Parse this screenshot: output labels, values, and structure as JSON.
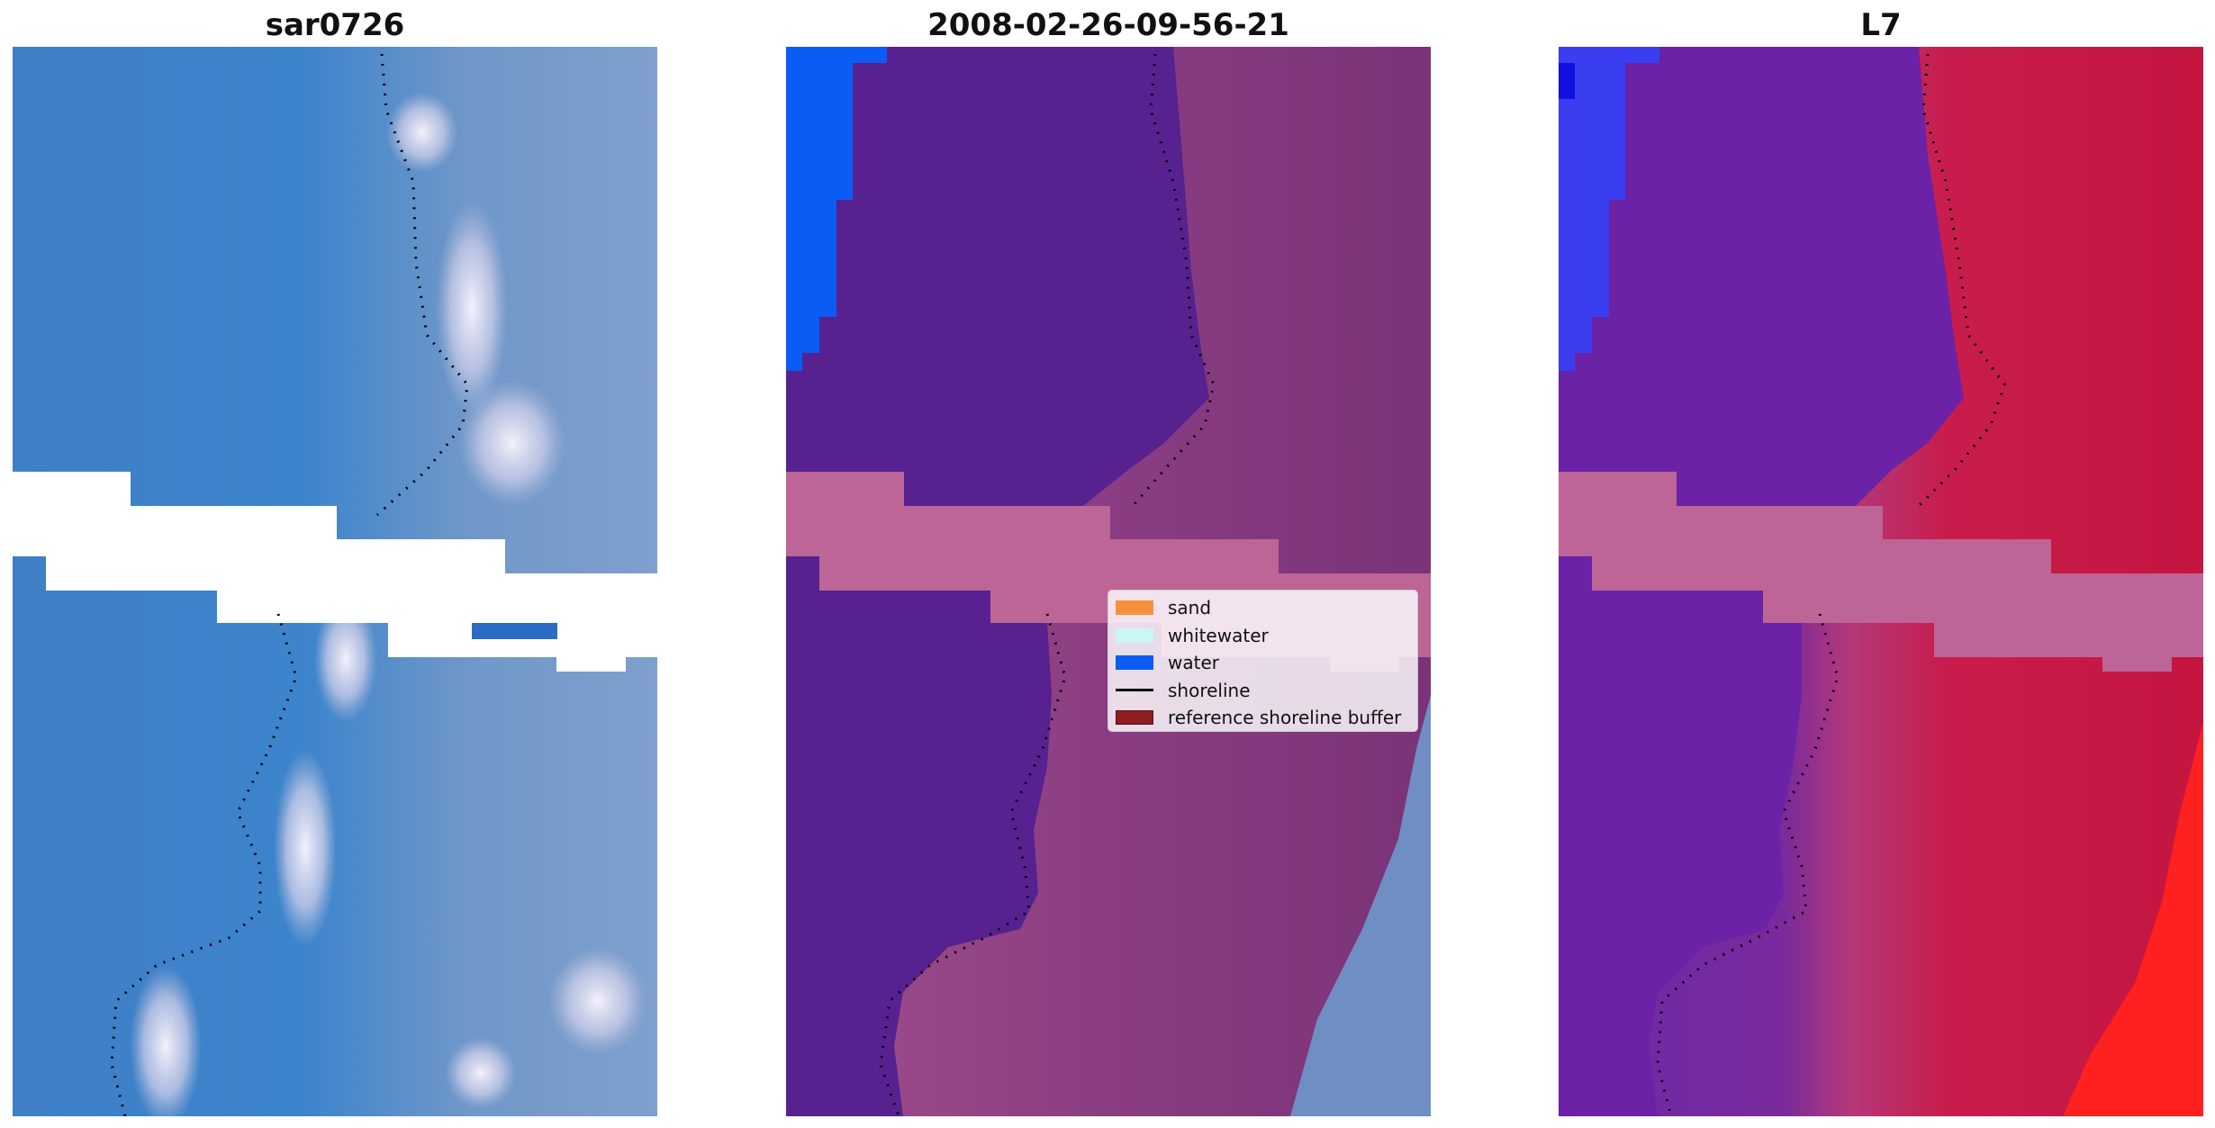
{
  "panels": [
    {
      "title": "sar0726"
    },
    {
      "title": "2008-02-26-09-56-21"
    },
    {
      "title": "L7"
    }
  ],
  "legend": {
    "items": [
      {
        "label": "sand",
        "color": "#f5913d",
        "kind": "patch"
      },
      {
        "label": "whitewater",
        "color": "#c9f7f5",
        "kind": "patch"
      },
      {
        "label": "water",
        "color": "#0a5cf5",
        "kind": "patch"
      },
      {
        "label": "shoreline",
        "color": "#000000",
        "kind": "line"
      },
      {
        "label": "reference shoreline buffer",
        "color": "#8c1e24",
        "kind": "patch"
      }
    ]
  },
  "colors": {
    "ocean_blue": "#4a86c6",
    "wetland_purple": "#5a2596",
    "buffer_pink": "#bc6596",
    "land_red": "#c21742",
    "water_blue": "#0a5cf5"
  }
}
